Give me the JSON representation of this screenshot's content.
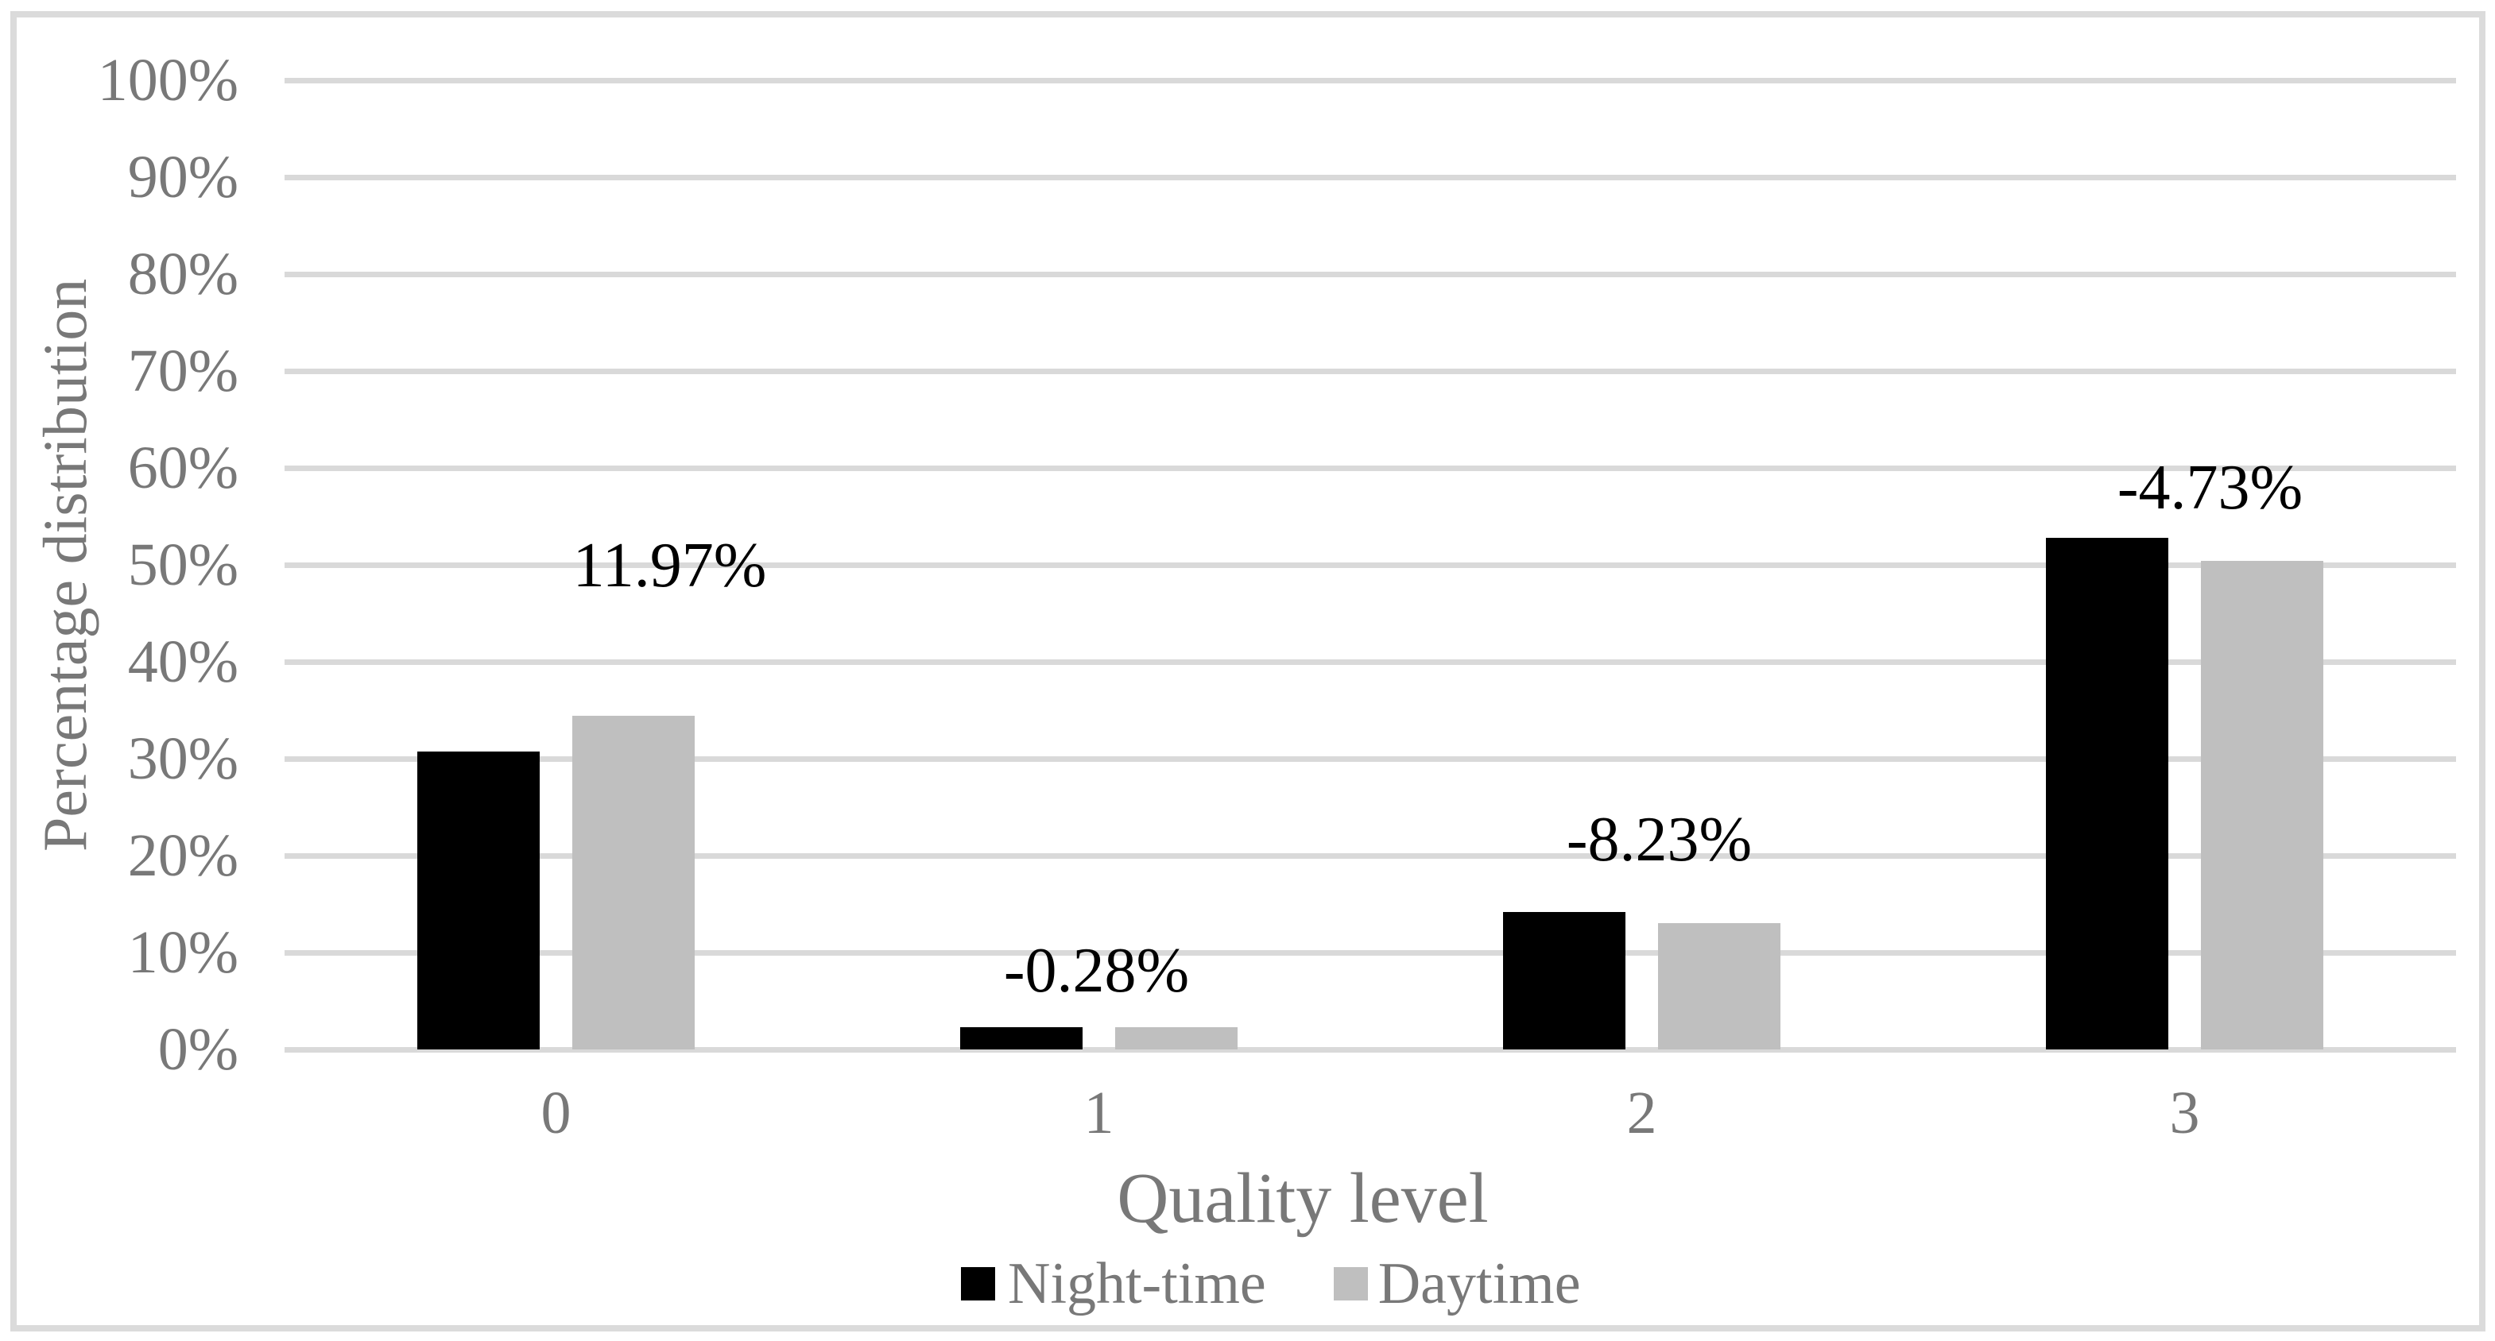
{
  "chart_data": {
    "type": "bar",
    "title": "",
    "xlabel": "Quality level",
    "ylabel": "Percentage distribution",
    "categories": [
      "0",
      "1",
      "2",
      "3"
    ],
    "series": [
      {
        "name": "Night-time",
        "color": "#000000",
        "values": [
          30.7,
          2.3,
          14.2,
          52.8
        ]
      },
      {
        "name": "Daytime",
        "color": "#bfbfbf",
        "values": [
          34.4,
          2.3,
          13.0,
          50.4
        ]
      }
    ],
    "diff_labels": [
      "11.97%",
      "-0.28%",
      "-8.23%",
      "-4.73%"
    ],
    "y_ticks": [
      "0%",
      "10%",
      "20%",
      "30%",
      "40%",
      "50%",
      "60%",
      "70%",
      "80%",
      "90%",
      "100%"
    ],
    "ylim": [
      0,
      100
    ],
    "grid": true,
    "legend_position": "bottom",
    "colors": {
      "night_bar": "#000000",
      "day_bar": "#bfbfbf",
      "gridline": "#d9d9d9",
      "frame_border": "#dbdbdb",
      "axis_text": "#787878",
      "data_label_text": "#000000"
    }
  }
}
